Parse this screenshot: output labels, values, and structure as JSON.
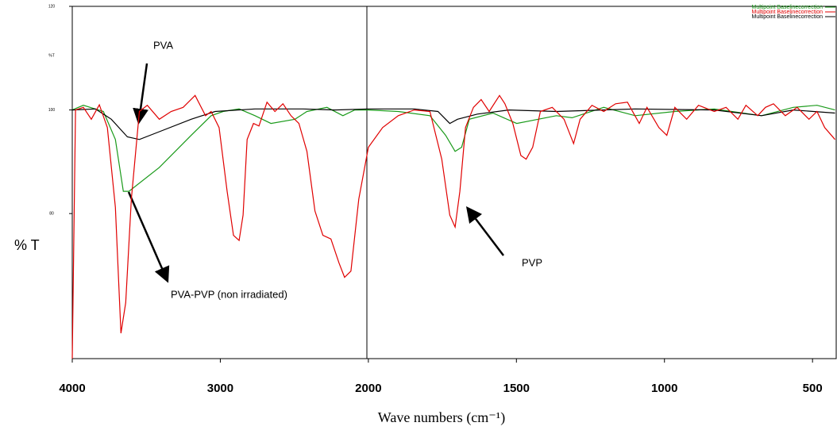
{
  "chart_data": {
    "type": "line",
    "y_label": "% T",
    "x_label": "Wave numbers (cm⁻¹)",
    "y_unit_label": "%T",
    "annotations": [
      "PVA",
      "PVA-PVP (non irradiated)",
      "PVP"
    ],
    "xlim": [
      4000,
      420
    ],
    "xticks": [
      4000,
      3000,
      2000,
      1500,
      1000,
      500
    ],
    "ylim": [
      52,
      120
    ],
    "yticks": [
      80,
      100,
      120
    ],
    "grid": false,
    "legend": "top-right",
    "series": [
      {
        "name": "Multipoint Baselinecorrection",
        "color": "#e00000",
        "x": [
          4000,
          3978,
          3925,
          3871,
          3817,
          3763,
          3709,
          3671,
          3639,
          3601,
          3547,
          3493,
          3412,
          3332,
          3251,
          3170,
          3100,
          3062,
          3008,
          2954,
          2911,
          2873,
          2846,
          2819,
          2776,
          2739,
          2685,
          2631,
          2577,
          2523,
          2469,
          2415,
          2361,
          2307,
          2253,
          2199,
          2161,
          2118,
          2065,
          2000,
          1952,
          1899,
          1845,
          1792,
          1752,
          1725,
          1707,
          1691,
          1672,
          1645,
          1619,
          1592,
          1557,
          1539,
          1512,
          1485,
          1467,
          1445,
          1419,
          1379,
          1339,
          1307,
          1285,
          1245,
          1205,
          1165,
          1125,
          1085,
          1059,
          1019,
          992,
          965,
          925,
          885,
          832,
          792,
          752,
          725,
          685,
          659,
          632,
          592,
          552,
          512,
          485,
          459,
          424
        ],
        "values": [
          52,
          100,
          100.5,
          98.2,
          101,
          96.6,
          81.2,
          56.9,
          62.8,
          82.8,
          99.7,
          100.9,
          98.2,
          99.7,
          100.5,
          102.8,
          98.9,
          99.7,
          96.6,
          84.3,
          75.8,
          74.8,
          79.7,
          94.3,
          97.4,
          96.9,
          101.5,
          99.7,
          101.2,
          98.9,
          97.4,
          92,
          80.5,
          75.8,
          75.1,
          70.5,
          67.7,
          68.9,
          82.8,
          92.8,
          96.6,
          98.9,
          100,
          99.7,
          90.5,
          79.7,
          77.4,
          84.3,
          96.6,
          100.5,
          102,
          99.7,
          102.8,
          101.2,
          97.4,
          91.2,
          90.5,
          92.8,
          99.7,
          100.5,
          98.2,
          93.5,
          98.2,
          100.9,
          99.7,
          101.2,
          101.5,
          97.4,
          100.5,
          96.6,
          95.1,
          100.5,
          98.2,
          100.9,
          99.7,
          100.5,
          98.2,
          100.9,
          98.9,
          100.5,
          101.2,
          98.9,
          100.5,
          98.2,
          99.7,
          96.6,
          94.3
        ]
      },
      {
        "name": "Multipoint Baselinecorrection",
        "color": "#1a9a1a",
        "x": [
          4000,
          3925,
          3790,
          3709,
          3655,
          3617,
          3412,
          3197,
          3062,
          2981,
          2873,
          2766,
          2658,
          2496,
          2415,
          2280,
          2172,
          2092,
          2000,
          1899,
          1792,
          1739,
          1707,
          1685,
          1659,
          1579,
          1499,
          1365,
          1312,
          1205,
          1099,
          965,
          832,
          672,
          565,
          485,
          424
        ],
        "values": [
          100,
          100.9,
          99.7,
          94.3,
          84.3,
          84.3,
          88.9,
          95.1,
          98.9,
          99.7,
          100.2,
          98.9,
          97.4,
          98.2,
          99.7,
          100.5,
          98.9,
          100,
          100,
          99.7,
          98.9,
          95.1,
          92,
          92.8,
          98.2,
          99.4,
          97.4,
          98.9,
          98.5,
          100.5,
          98.9,
          99.7,
          100.2,
          98.9,
          100.5,
          100.9,
          100
        ]
      },
      {
        "name": "Multipoint Baselinecorrection",
        "color": "#000000",
        "x": [
          4000,
          3844,
          3736,
          3628,
          3547,
          3412,
          3197,
          3035,
          2766,
          2442,
          2226,
          2000,
          1845,
          1765,
          1725,
          1699,
          1632,
          1525,
          1365,
          1099,
          832,
          672,
          565,
          424
        ],
        "values": [
          100,
          100.2,
          98.2,
          94.8,
          94.3,
          95.8,
          98.2,
          99.7,
          100.2,
          100.2,
          100,
          100.2,
          100.2,
          99.7,
          97.4,
          98.2,
          99.2,
          100,
          99.7,
          100.2,
          100,
          98.9,
          100,
          99.4
        ]
      }
    ]
  }
}
